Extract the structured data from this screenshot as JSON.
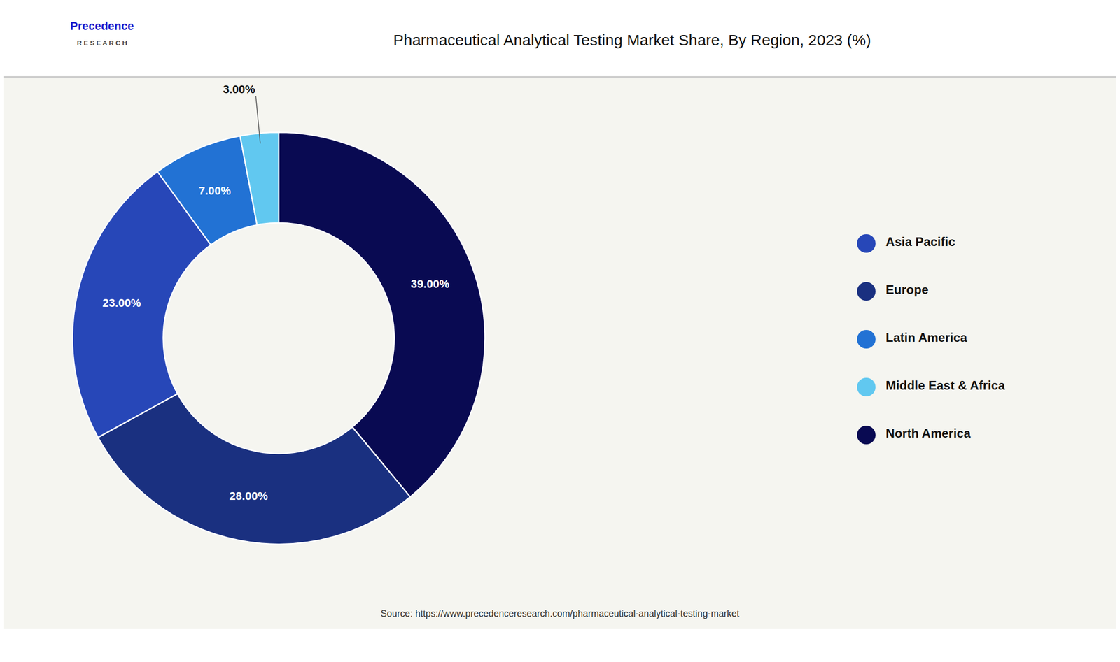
{
  "chart_data": {
    "type": "pie",
    "title": "Pharmaceutical Analytical Testing Market Share, By Region, 2023 (%)",
    "categories": [
      "North America",
      "Europe",
      "Asia Pacific",
      "Latin America",
      "Middle East & Africa"
    ],
    "values": [
      39.0,
      28.0,
      23.0,
      7.0,
      3.0
    ],
    "value_labels": [
      "39.00%",
      "28.00%",
      "23.00%",
      "7.00%",
      "3.00%"
    ],
    "colors": [
      "#090a52",
      "#1a3080",
      "#2747b8",
      "#2272d4",
      "#61c8f0"
    ],
    "data_labels": true,
    "legend": "right",
    "annotations": [
      "Precedence",
      "R E S E A R C H",
      "Source: https://www.precedenceresearch.com/pharmaceutical-analytical-testing-market"
    ]
  }
}
